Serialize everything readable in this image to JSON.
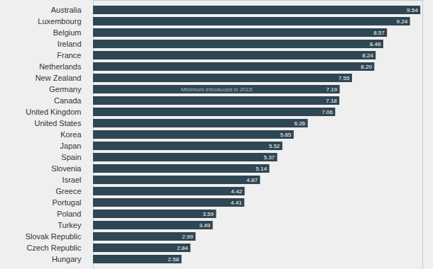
{
  "chart_data": {
    "type": "bar",
    "orientation": "horizontal",
    "categories": [
      "Australia",
      "Luxembourg",
      "Belgium",
      "Ireland",
      "France",
      "Netherlands",
      "New Zealand",
      "Germany",
      "Canada",
      "United Kingdom",
      "United States",
      "Korea",
      "Japan",
      "Spain",
      "Slovenia",
      "Israel",
      "Greece",
      "Portugal",
      "Poland",
      "Turkey",
      "Slovak Republic",
      "Czech Republic",
      "Hungary"
    ],
    "values": [
      9.54,
      9.24,
      8.57,
      8.46,
      8.24,
      8.2,
      7.55,
      7.19,
      7.18,
      7.06,
      6.26,
      5.85,
      5.52,
      5.37,
      5.14,
      4.87,
      4.42,
      4.41,
      3.59,
      3.49,
      2.99,
      2.84,
      2.58
    ],
    "value_labels": [
      "9.54",
      "9.24",
      "8.57",
      "8.46",
      "8.24",
      "8.20",
      "7.55",
      "7.19",
      "7.18",
      "7.06",
      "6.26",
      "5.85",
      "5.52",
      "5.37",
      "5.14",
      "4.87",
      "4.42",
      "4.41",
      "3.59",
      "3.49",
      "2.99",
      "2.84",
      "2.58"
    ],
    "color": "#2f4653",
    "xlim": [
      0,
      9.6
    ],
    "xticks": [],
    "tick_labels": "y",
    "data_labels": true,
    "grid": false,
    "annotations": [
      {
        "category": "Germany",
        "text": "Minimum introduced in 2015"
      }
    ]
  }
}
